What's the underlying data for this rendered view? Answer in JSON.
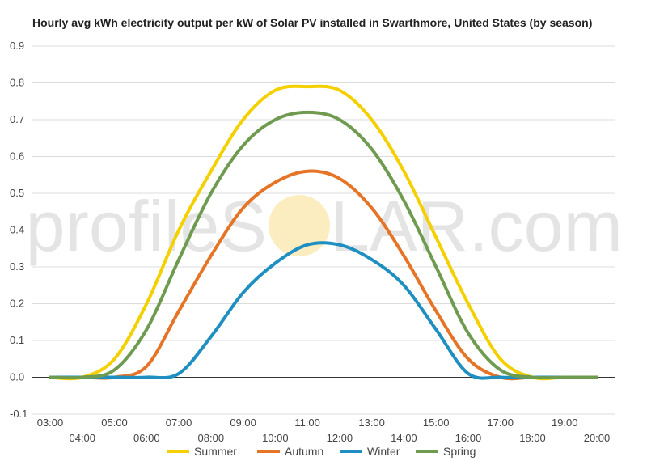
{
  "chart_data": {
    "type": "line",
    "title": "Hourly avg kWh electricity output per kW of Solar PV installed in Swarthmore, United States (by season)",
    "watermark": {
      "left": "profileS",
      "right": "LAR.com"
    },
    "x": [
      "03:00",
      "04:00",
      "05:00",
      "06:00",
      "07:00",
      "08:00",
      "09:00",
      "10:00",
      "11:00",
      "12:00",
      "13:00",
      "14:00",
      "15:00",
      "16:00",
      "17:00",
      "18:00",
      "19:00",
      "20:00"
    ],
    "ylim": [
      -0.1,
      0.9
    ],
    "yticks": [
      "-0.1",
      "0.0",
      "0.1",
      "0.2",
      "0.3",
      "0.4",
      "0.5",
      "0.6",
      "0.7",
      "0.8",
      "0.9"
    ],
    "grid": true,
    "legend_position": "bottom",
    "series": [
      {
        "name": "Summer",
        "color": "#f5d000",
        "values": [
          0,
          0,
          0.05,
          0.2,
          0.4,
          0.56,
          0.7,
          0.78,
          0.79,
          0.78,
          0.7,
          0.56,
          0.38,
          0.2,
          0.05,
          0,
          0,
          0
        ]
      },
      {
        "name": "Autumn",
        "color": "#e67426",
        "values": [
          0,
          0,
          0,
          0.03,
          0.18,
          0.33,
          0.46,
          0.53,
          0.56,
          0.54,
          0.46,
          0.33,
          0.18,
          0.05,
          0,
          0,
          0,
          0
        ]
      },
      {
        "name": "Winter",
        "color": "#1e8fc0",
        "values": [
          0,
          0,
          0,
          0,
          0.01,
          0.11,
          0.23,
          0.31,
          0.36,
          0.36,
          0.32,
          0.25,
          0.13,
          0.01,
          0,
          0,
          0,
          0
        ]
      },
      {
        "name": "Spring",
        "color": "#6e9b4f",
        "values": [
          0,
          0,
          0.02,
          0.13,
          0.32,
          0.5,
          0.63,
          0.7,
          0.72,
          0.7,
          0.62,
          0.48,
          0.3,
          0.12,
          0.02,
          0,
          0,
          0
        ]
      }
    ]
  }
}
